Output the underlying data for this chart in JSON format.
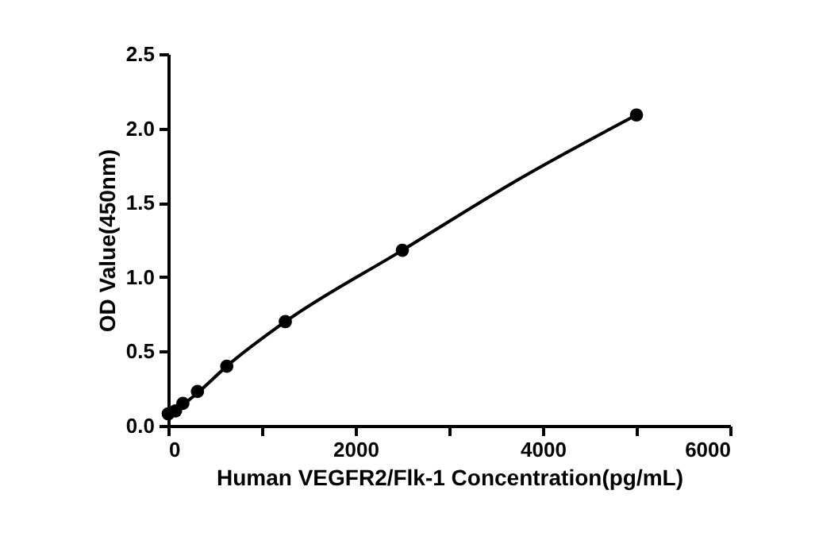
{
  "chart_data": {
    "type": "scatter",
    "xlabel": "Human VEGFR2/Flk-1 Concentration(pg/mL)",
    "ylabel": "OD Value(450nm)",
    "xlim": [
      0,
      6000
    ],
    "xticks": [
      0,
      {
        "value": 1000,
        "label": null
      },
      2000,
      {
        "value": 3000,
        "label": null
      },
      4000,
      {
        "value": 5000,
        "label": null
      },
      6000
    ],
    "ylim": [
      0,
      2.5
    ],
    "yticks": [
      {
        "value": 0,
        "label": "0.0"
      },
      {
        "value": 0.5,
        "label": "0.5"
      },
      {
        "value": 1,
        "label": "1.0"
      },
      {
        "value": 1.5,
        "label": "1.5"
      },
      {
        "value": 2,
        "label": "2.0"
      },
      {
        "value": 2.5,
        "label": "2.5"
      }
    ],
    "grid": false,
    "marker": "circle",
    "series": [
      {
        "type": "line",
        "marker": "none",
        "color": "#000000",
        "x": [
          0,
          78,
          156,
          312,
          625,
          1250,
          2500,
          3750,
          5000
        ],
        "values": [
          0.08,
          0.1,
          0.14,
          0.22,
          0.4,
          0.7,
          1.18,
          1.66,
          2.09
        ]
      },
      {
        "color": "#000000",
        "x": [
          0,
          78,
          156,
          312,
          625,
          1250,
          2500,
          5000
        ],
        "values": [
          0.08,
          0.1,
          0.15,
          0.23,
          0.4,
          0.7,
          1.18,
          2.09
        ]
      }
    ]
  }
}
